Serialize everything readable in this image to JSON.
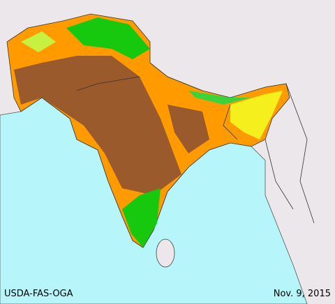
{
  "source": "USDA-FAS-OGA",
  "date": "Nov. 9, 2015"
}
